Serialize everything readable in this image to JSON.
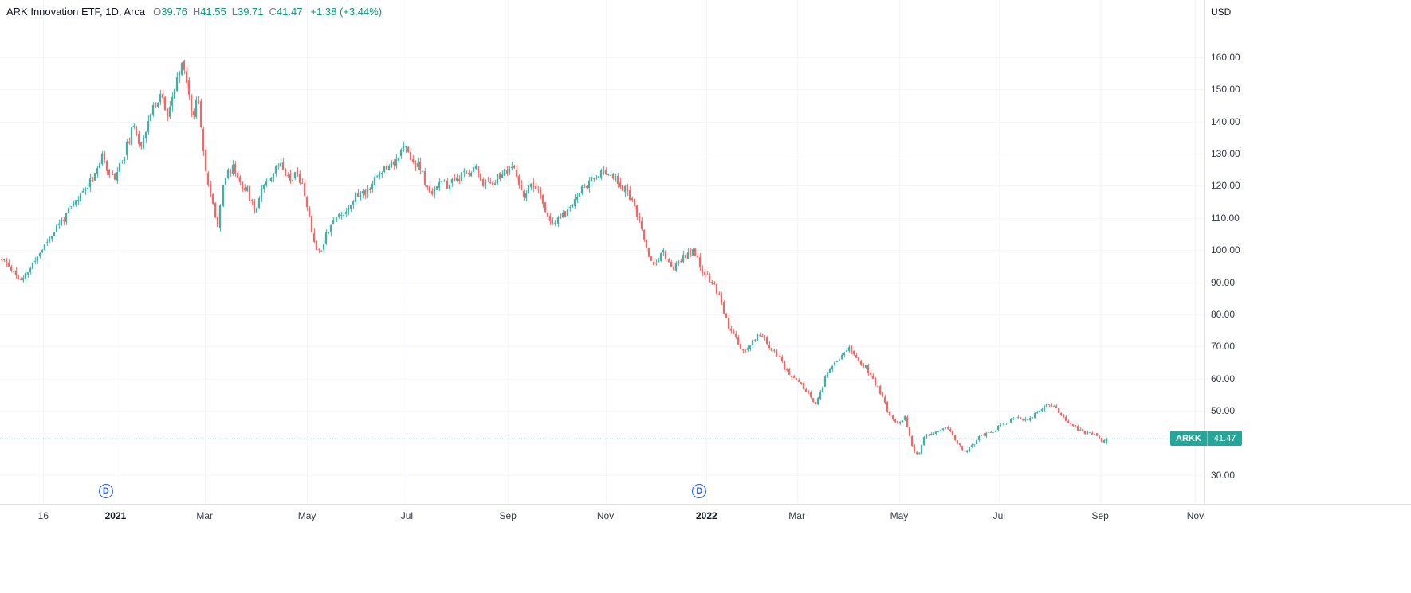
{
  "legend": {
    "title": "ARK Innovation ETF, 1D, Arca",
    "ohlc": [
      {
        "label": "O",
        "value": "39.76"
      },
      {
        "label": "H",
        "value": "41.55"
      },
      {
        "label": "L",
        "value": "39.71"
      },
      {
        "label": "C",
        "value": "41.47"
      }
    ],
    "change": "+1.38 (+3.44%)"
  },
  "price_axis": {
    "currency": "USD",
    "symbol_badge": {
      "symbol": "ARKK",
      "price": "41.47"
    }
  },
  "time_axis": {
    "ticks": [
      {
        "label": "16",
        "t": 0.036
      },
      {
        "label": "2021",
        "t": 0.096,
        "major": true
      },
      {
        "label": "Mar",
        "t": 0.17
      },
      {
        "label": "May",
        "t": 0.255
      },
      {
        "label": "Jul",
        "t": 0.338
      },
      {
        "label": "Sep",
        "t": 0.422
      },
      {
        "label": "Nov",
        "t": 0.503
      },
      {
        "label": "2022",
        "t": 0.587,
        "major": true
      },
      {
        "label": "Mar",
        "t": 0.662
      },
      {
        "label": "May",
        "t": 0.747
      },
      {
        "label": "Jul",
        "t": 0.83
      },
      {
        "label": "Sep",
        "t": 0.914
      },
      {
        "label": "Nov",
        "t": 0.993
      }
    ]
  },
  "markers": [
    {
      "label": "D",
      "t": 0.088
    },
    {
      "label": "D",
      "t": 0.581
    }
  ],
  "colors": {
    "up": "#26a69a",
    "down": "#ef5350",
    "value_text": "#089981",
    "axis_text": "#363a45",
    "text": "#131722",
    "grid": "#f0f3fa",
    "axis_border": "#e0e3eb",
    "marker_blue": "#2962ff"
  },
  "chart_data": {
    "type": "candlestick",
    "title": "ARK Innovation ETF, 1D, Arca",
    "symbol": "ARKK",
    "exchange": "Arca",
    "interval": "1D",
    "currency": "USD",
    "last": {
      "open": 39.76,
      "high": 41.55,
      "low": 39.71,
      "close": 41.47,
      "change": "+1.38",
      "change_pct": "+3.44%"
    },
    "y_ticks": [
      160,
      150,
      140,
      130,
      120,
      110,
      100,
      90,
      80,
      70,
      60,
      50,
      40,
      30
    ],
    "ylim": [
      21.3,
      177.8
    ],
    "num_candles": 460,
    "plot_fraction": 0.9205,
    "grid": true,
    "legend_position": "top-left",
    "price_path": [
      [
        0,
        97
      ],
      [
        0.007,
        95
      ],
      [
        0.018,
        90
      ],
      [
        0.029,
        96
      ],
      [
        0.04,
        102
      ],
      [
        0.05,
        107
      ],
      [
        0.061,
        112
      ],
      [
        0.072,
        117
      ],
      [
        0.083,
        123
      ],
      [
        0.092,
        129
      ],
      [
        0.101,
        122
      ],
      [
        0.109,
        128
      ],
      [
        0.119,
        138
      ],
      [
        0.126,
        133
      ],
      [
        0.135,
        142
      ],
      [
        0.144,
        149
      ],
      [
        0.151,
        141
      ],
      [
        0.158,
        152
      ],
      [
        0.165,
        159
      ],
      [
        0.173,
        141
      ],
      [
        0.178,
        149
      ],
      [
        0.186,
        122
      ],
      [
        0.191,
        115
      ],
      [
        0.196,
        108
      ],
      [
        0.201,
        122
      ],
      [
        0.209,
        126
      ],
      [
        0.216,
        121
      ],
      [
        0.223,
        118
      ],
      [
        0.229,
        112
      ],
      [
        0.237,
        121
      ],
      [
        0.246,
        124
      ],
      [
        0.253,
        128
      ],
      [
        0.26,
        122
      ],
      [
        0.268,
        124
      ],
      [
        0.275,
        117
      ],
      [
        0.282,
        104
      ],
      [
        0.288,
        99
      ],
      [
        0.295,
        106
      ],
      [
        0.302,
        110
      ],
      [
        0.311,
        112
      ],
      [
        0.32,
        117
      ],
      [
        0.329,
        118
      ],
      [
        0.338,
        122
      ],
      [
        0.347,
        126
      ],
      [
        0.356,
        128
      ],
      [
        0.365,
        132
      ],
      [
        0.373,
        127
      ],
      [
        0.38,
        125
      ],
      [
        0.387,
        117
      ],
      [
        0.396,
        121
      ],
      [
        0.404,
        120
      ],
      [
        0.412,
        122
      ],
      [
        0.421,
        124
      ],
      [
        0.429,
        126
      ],
      [
        0.437,
        120
      ],
      [
        0.446,
        122
      ],
      [
        0.455,
        124
      ],
      [
        0.463,
        126
      ],
      [
        0.471,
        117
      ],
      [
        0.481,
        120
      ],
      [
        0.489,
        116
      ],
      [
        0.498,
        107
      ],
      [
        0.504,
        110
      ],
      [
        0.512,
        112
      ],
      [
        0.522,
        118
      ],
      [
        0.531,
        121
      ],
      [
        0.54,
        123
      ],
      [
        0.548,
        125
      ],
      [
        0.558,
        121
      ],
      [
        0.567,
        118
      ],
      [
        0.574,
        112
      ],
      [
        0.581,
        104
      ],
      [
        0.59,
        95
      ],
      [
        0.599,
        99
      ],
      [
        0.608,
        94
      ],
      [
        0.617,
        98
      ],
      [
        0.626,
        100
      ],
      [
        0.635,
        92
      ],
      [
        0.644,
        90
      ],
      [
        0.651,
        84
      ],
      [
        0.658,
        76
      ],
      [
        0.665,
        72
      ],
      [
        0.673,
        68
      ],
      [
        0.68,
        72
      ],
      [
        0.687,
        74
      ],
      [
        0.694,
        70
      ],
      [
        0.701,
        68
      ],
      [
        0.709,
        63
      ],
      [
        0.716,
        60
      ],
      [
        0.723,
        58
      ],
      [
        0.73,
        55
      ],
      [
        0.737,
        52
      ],
      [
        0.745,
        60
      ],
      [
        0.752,
        64
      ],
      [
        0.759,
        67
      ],
      [
        0.766,
        70
      ],
      [
        0.773,
        66
      ],
      [
        0.781,
        64
      ],
      [
        0.788,
        60
      ],
      [
        0.795,
        56
      ],
      [
        0.802,
        50
      ],
      [
        0.809,
        46
      ],
      [
        0.817,
        48
      ],
      [
        0.824,
        38
      ],
      [
        0.829,
        36
      ],
      [
        0.835,
        42
      ],
      [
        0.842,
        43
      ],
      [
        0.849,
        44
      ],
      [
        0.856,
        45
      ],
      [
        0.863,
        41
      ],
      [
        0.871,
        37
      ],
      [
        0.878,
        39
      ],
      [
        0.885,
        42
      ],
      [
        0.892,
        43
      ],
      [
        0.899,
        44
      ],
      [
        0.906,
        46
      ],
      [
        0.914,
        47
      ],
      [
        0.921,
        48
      ],
      [
        0.928,
        47
      ],
      [
        0.935,
        49
      ],
      [
        0.942,
        51
      ],
      [
        0.948,
        52
      ],
      [
        0.954,
        51
      ],
      [
        0.96,
        48
      ],
      [
        0.968,
        46
      ],
      [
        0.975,
        44
      ],
      [
        0.982,
        43
      ],
      [
        0.989,
        42.5
      ],
      [
        0.996,
        40.5
      ],
      [
        1,
        41.47
      ]
    ]
  }
}
